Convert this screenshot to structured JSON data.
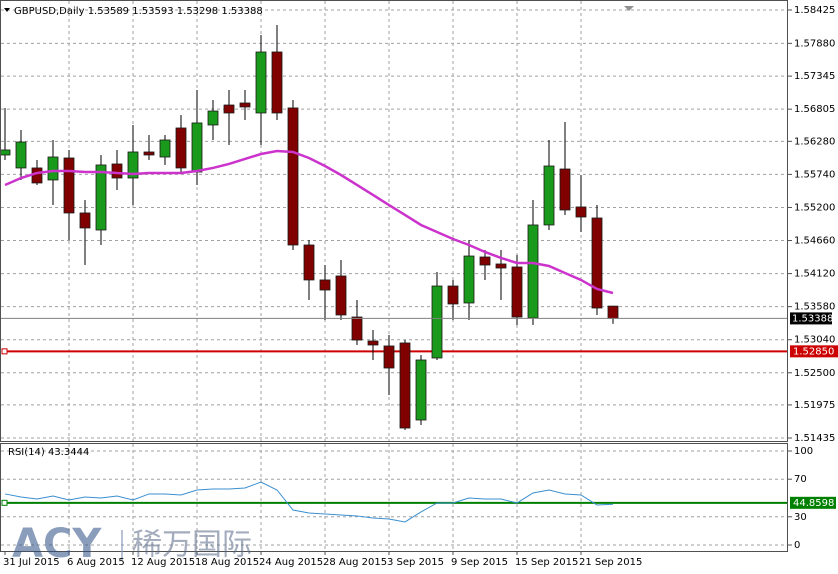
{
  "chart_data": [
    {
      "type": "candlestick",
      "title": "GBPUSD,Daily",
      "categories": [
        "31 Jul 2015",
        null,
        null,
        null,
        "6 Aug 2015",
        null,
        null,
        null,
        "12 Aug 2015",
        null,
        null,
        null,
        "18 Aug 2015",
        null,
        null,
        null,
        "24 Aug 2015",
        null,
        null,
        null,
        "28 Aug 2015",
        null,
        null,
        null,
        "3 Sep 2015",
        null,
        null,
        null,
        "9 Sep 2015",
        null,
        null,
        null,
        "15 Sep 2015",
        null,
        null,
        null,
        "21 Sep 2015",
        null,
        null
      ],
      "series": [
        {
          "up_color": "#1a9a1a",
          "down_color": "#800000",
          "open": [
            1.56057,
            1.55845,
            1.55845,
            1.55649,
            1.56008,
            1.5511,
            1.54832,
            1.5591,
            1.55681,
            1.56106,
            1.56024,
            1.56498,
            1.55779,
            1.56547,
            1.56873,
            1.56906,
            1.56743,
            1.57739,
            1.56825,
            1.54587,
            1.54016,
            1.54081,
            1.53411,
            1.53019,
            1.52938,
            1.52987,
            1.51729,
            1.52742,
            1.53917,
            1.5364,
            1.54391,
            1.54277,
            1.54228,
            1.53395,
            1.54914,
            1.55828,
            1.55208,
            1.55028,
            1.53589
          ],
          "high": [
            1.56825,
            1.56465,
            1.55975,
            1.56302,
            1.56139,
            1.55322,
            1.56057,
            1.56139,
            1.56547,
            1.56384,
            1.56384,
            1.5671,
            1.57118,
            1.56955,
            1.57118,
            1.57118,
            1.58017,
            1.5818,
            1.56955,
            1.54669,
            1.5426,
            1.54342,
            1.53689,
            1.53199,
            1.53117,
            1.53035,
            1.52791,
            1.54146,
            1.54016,
            1.54669,
            1.54505,
            1.54505,
            1.54424,
            1.55322,
            1.56302,
            1.56596,
            1.5573,
            1.5524,
            1.53593
          ],
          "low": [
            1.55975,
            1.55649,
            1.55567,
            1.5524,
            1.54669,
            1.5426,
            1.54587,
            1.55485,
            1.5524,
            1.55975,
            1.55894,
            1.55779,
            1.55567,
            1.56302,
            1.5622,
            1.56629,
            1.5622,
            1.56629,
            1.54505,
            1.53689,
            1.53362,
            1.53362,
            1.52954,
            1.52709,
            1.52137,
            1.51565,
            1.51647,
            1.52709,
            1.53362,
            1.53362,
            1.54016,
            1.53689,
            1.53281,
            1.53281,
            1.54832,
            1.55077,
            1.54799,
            1.53444,
            1.53298
          ],
          "close": [
            1.56139,
            1.56269,
            1.556,
            1.56024,
            1.5511,
            1.54865,
            1.55894,
            1.55681,
            1.56106,
            1.56057,
            1.56302,
            1.55845,
            1.5658,
            1.56775,
            1.56743,
            1.56841,
            1.57739,
            1.56743,
            1.54587,
            1.54016,
            1.53852,
            1.53444,
            1.53035,
            1.52954,
            1.52578,
            1.51598,
            1.52709,
            1.53917,
            1.53624,
            1.54407,
            1.5426,
            1.54211,
            1.53411,
            1.54914,
            1.55877,
            1.55159,
            1.55044,
            1.53558,
            1.53388
          ]
        }
      ],
      "overlay": {
        "type": "line",
        "color": "#cc33cc",
        "values": [
          1.55567,
          1.55681,
          1.55763,
          1.55796,
          1.55796,
          1.55779,
          1.55779,
          1.55763,
          1.55747,
          1.55763,
          1.55763,
          1.55763,
          1.55796,
          1.55845,
          1.5591,
          1.55992,
          1.56073,
          1.56122,
          1.56106,
          1.56008,
          1.55877,
          1.5573,
          1.55567,
          1.55404,
          1.5524,
          1.55077,
          1.54914,
          1.54799,
          1.54685,
          1.54587,
          1.54473,
          1.54375,
          1.54293,
          1.54293,
          1.54244,
          1.5413,
          1.54016,
          1.53869,
          1.53803
        ]
      },
      "level": {
        "value": 1.5285,
        "label": "1.52850",
        "color": "#cc0000"
      },
      "ylim": [
        1.51386,
        1.58588
      ],
      "yticks": [
        1.58425,
        {
          "value": 1.5788,
          "label": "1.57880"
        },
        1.57345,
        1.56805,
        {
          "value": 1.5628,
          "label": "1.56280"
        },
        {
          "value": 1.5574,
          "label": "1.55740"
        },
        {
          "value": 1.552,
          "label": "1.55200"
        },
        {
          "value": 1.5466,
          "label": "1.54660"
        },
        {
          "value": 1.5412,
          "label": "1.54120"
        },
        {
          "value": 1.5358,
          "label": "1.53580"
        },
        {
          "value": 1.5304,
          "label": "1.53040"
        },
        {
          "value": 1.525,
          "label": "1.52500"
        },
        1.51975,
        1.51435
      ],
      "grid": true
    },
    {
      "type": "line",
      "title": "RSI(14) 43.3444",
      "series": [
        {
          "color": "#3a8fd0",
          "values": [
            54.3,
            51.1,
            48.9,
            52.1,
            47.9,
            51.1,
            50.0,
            52.1,
            47.9,
            54.3,
            54.3,
            53.2,
            58.5,
            59.6,
            59.6,
            60.6,
            67.0,
            58.5,
            37.2,
            34.0,
            33.0,
            31.9,
            30.9,
            28.7,
            27.7,
            24.5,
            35.1,
            44.7,
            44.7,
            50.0,
            48.9,
            48.9,
            44.7,
            55.3,
            58.5,
            54.3,
            53.2,
            42.6,
            43.3444
          ]
        }
      ],
      "level": {
        "value": 44.8598,
        "color": "#008000"
      },
      "ylim": [
        -6.4,
        108.5
      ],
      "yticks": [
        0,
        30,
        70,
        100
      ],
      "grid": true
    }
  ],
  "watermark": {
    "logo": "ACY",
    "text": "稀万国际"
  }
}
